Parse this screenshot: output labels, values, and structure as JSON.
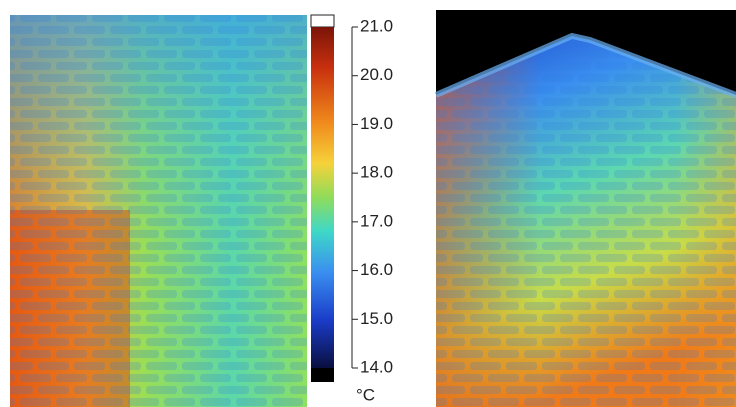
{
  "colorbar": {
    "ticks": [
      {
        "value": 21,
        "label": "21.0"
      },
      {
        "value": 20,
        "label": "20.0"
      },
      {
        "value": 19,
        "label": "19.0"
      },
      {
        "value": 18,
        "label": "18.0"
      },
      {
        "value": 17,
        "label": "17.0"
      },
      {
        "value": 16,
        "label": "16.0"
      },
      {
        "value": 15,
        "label": "15.0"
      },
      {
        "value": 14,
        "label": "14.0"
      }
    ],
    "unit": "°C"
  }
}
